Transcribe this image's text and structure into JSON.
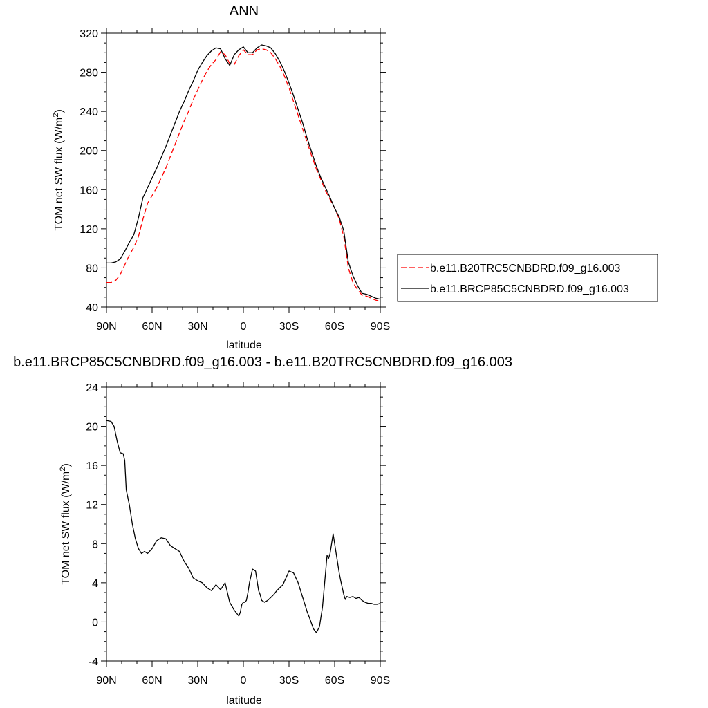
{
  "chart_data": [
    {
      "type": "line",
      "title": "ANN",
      "xlabel": "latitude",
      "ylabel": "TOM net SW flux (W/m",
      "ylabel_sup": "2",
      "ylabel_close": ")",
      "xlim": [
        -90,
        90
      ],
      "ylim": [
        40,
        320
      ],
      "xticks": [
        -90,
        -60,
        -30,
        0,
        30,
        60,
        90
      ],
      "xtick_labels": [
        "90N",
        "60N",
        "30N",
        "0",
        "30S",
        "60S",
        "90S"
      ],
      "yticks": [
        40,
        80,
        120,
        160,
        200,
        240,
        280,
        320
      ],
      "grid": false,
      "legend_position": "right",
      "series": [
        {
          "name": "b.e11.B20TRC5CNBDRD.f09_g16.003",
          "color": "#ff0000",
          "dash": "dashed",
          "x": [
            -90,
            -87,
            -84,
            -81,
            -78,
            -75,
            -72,
            -69,
            -66,
            -63,
            -60,
            -57,
            -54,
            -51,
            -48,
            -45,
            -42,
            -39,
            -36,
            -33,
            -30,
            -27,
            -24,
            -21,
            -18,
            -15,
            -12,
            -9,
            -6,
            -3,
            0,
            3,
            6,
            9,
            12,
            15,
            18,
            21,
            24,
            27,
            30,
            33,
            36,
            39,
            42,
            45,
            48,
            51,
            54,
            57,
            60,
            63,
            66,
            69,
            72,
            75,
            78,
            81,
            84,
            87,
            90
          ],
          "y": [
            65,
            65,
            67,
            73,
            83,
            93,
            101,
            112,
            130,
            146,
            154,
            162,
            172,
            182,
            194,
            206,
            218,
            230,
            240,
            252,
            262,
            272,
            281,
            288,
            293,
            301,
            298,
            289,
            288,
            297,
            303,
            298,
            298,
            303,
            304,
            303,
            300,
            294,
            286,
            276,
            264,
            250,
            236,
            222,
            208,
            194,
            181,
            170,
            159,
            150,
            141,
            130,
            112,
            80,
            65,
            58,
            52,
            51,
            49,
            47,
            46
          ]
        },
        {
          "name": "b.e11.BRCP85C5CNBDRD.f09_g16.003",
          "color": "#000000",
          "dash": "solid",
          "x": [
            -90,
            -87,
            -84,
            -81,
            -78,
            -75,
            -72,
            -69,
            -66,
            -63,
            -60,
            -57,
            -54,
            -51,
            -48,
            -45,
            -42,
            -39,
            -36,
            -33,
            -30,
            -27,
            -24,
            -21,
            -18,
            -15,
            -12,
            -9,
            -6,
            -3,
            0,
            3,
            6,
            9,
            12,
            15,
            18,
            21,
            24,
            27,
            30,
            33,
            36,
            39,
            42,
            45,
            48,
            51,
            54,
            57,
            60,
            63,
            66,
            69,
            72,
            75,
            78,
            81,
            84,
            87,
            90
          ],
          "y": [
            85,
            85,
            86,
            89,
            97,
            106,
            114,
            131,
            152,
            162,
            172,
            182,
            193,
            204,
            216,
            228,
            240,
            250,
            261,
            271,
            282,
            290,
            297,
            302,
            305,
            304,
            294,
            287,
            298,
            303,
            306,
            300,
            300,
            305,
            308,
            307,
            305,
            299,
            291,
            281,
            269,
            256,
            242,
            228,
            212,
            198,
            184,
            172,
            162,
            152,
            141,
            132,
            118,
            86,
            72,
            62,
            54,
            53,
            51,
            49,
            48
          ]
        }
      ]
    },
    {
      "type": "line",
      "title": "b.e11.BRCP85C5CNBDRD.f09_g16.003 - b.e11.B20TRC5CNBDRD.f09_g16.003",
      "xlabel": "latitude",
      "ylabel": "TOM net SW flux (W/m",
      "ylabel_sup": "2",
      "ylabel_close": ")",
      "xlim": [
        -90,
        90
      ],
      "ylim": [
        -4,
        24
      ],
      "xticks": [
        -90,
        -60,
        -30,
        0,
        30,
        60,
        90
      ],
      "xtick_labels": [
        "90N",
        "60N",
        "30N",
        "0",
        "30S",
        "60S",
        "90S"
      ],
      "yticks": [
        -4,
        0,
        4,
        8,
        12,
        16,
        20,
        24
      ],
      "grid": false,
      "series": [
        {
          "color": "#000000",
          "dash": "solid",
          "x": [
            -90,
            -87,
            -85,
            -83,
            -81,
            -79,
            -78,
            -77,
            -75,
            -73,
            -71,
            -69,
            -67,
            -65,
            -63,
            -60,
            -57,
            -54,
            -51,
            -48,
            -45,
            -42,
            -39,
            -36,
            -33,
            -30,
            -27,
            -24,
            -21,
            -18,
            -15,
            -12,
            -9,
            -6,
            -3,
            -2,
            -1,
            0,
            1,
            2,
            3,
            4,
            6,
            8,
            9,
            10,
            11,
            12,
            14,
            16,
            18,
            20,
            22,
            24,
            26,
            28,
            30,
            33,
            36,
            38,
            40,
            42,
            44,
            46,
            48,
            50,
            52,
            54,
            55,
            56,
            57,
            58,
            59,
            60,
            62,
            63,
            64,
            65,
            66,
            67,
            68,
            70,
            72,
            74,
            76,
            78,
            80,
            82,
            84,
            86,
            88,
            90
          ],
          "y": [
            20.6,
            20.5,
            20.0,
            18.5,
            17.3,
            17.2,
            16.5,
            13.5,
            12.0,
            10.0,
            8.5,
            7.5,
            7.0,
            7.2,
            7.0,
            7.5,
            8.3,
            8.6,
            8.5,
            7.8,
            7.5,
            7.2,
            6.2,
            5.5,
            4.5,
            4.2,
            4.0,
            3.5,
            3.2,
            3.8,
            3.3,
            4.0,
            2.0,
            1.2,
            0.6,
            1.0,
            1.8,
            2.0,
            2.0,
            2.2,
            3.0,
            4.0,
            5.4,
            5.2,
            4.2,
            3.2,
            2.8,
            2.2,
            2.0,
            2.2,
            2.5,
            2.8,
            3.2,
            3.5,
            3.8,
            4.5,
            5.2,
            5.0,
            4.0,
            3.0,
            2.0,
            1.0,
            0.2,
            -0.7,
            -1.1,
            -0.5,
            1.5,
            5.0,
            6.8,
            6.5,
            7.0,
            8.0,
            9.0,
            8.0,
            6.0,
            5.0,
            4.2,
            3.5,
            2.8,
            2.3,
            2.6,
            2.5,
            2.6,
            2.4,
            2.5,
            2.2,
            2.0,
            1.9,
            1.9,
            1.8,
            1.8,
            1.9
          ]
        }
      ]
    }
  ]
}
